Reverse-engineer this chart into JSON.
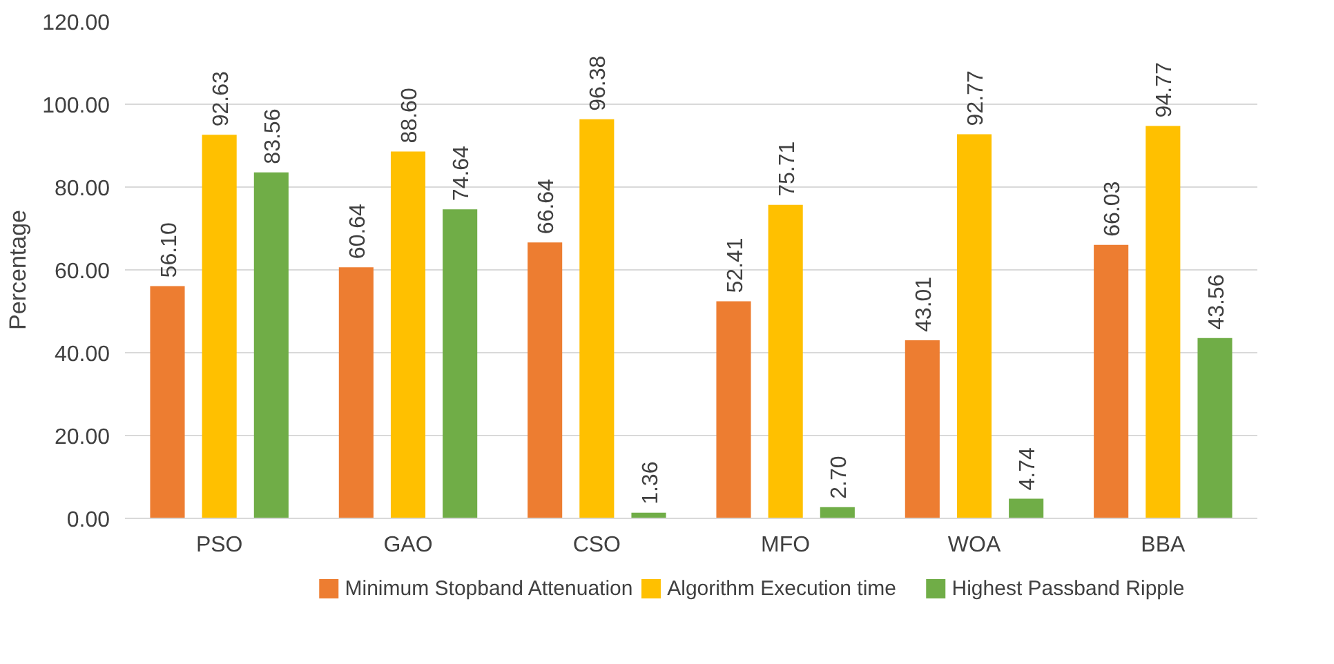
{
  "chart_data": {
    "type": "bar",
    "ylabel": "Percentage",
    "categories": [
      "PSO",
      "GAO",
      "CSO",
      "MFO",
      "WOA",
      "BBA"
    ],
    "series": [
      {
        "name": "Minimum Stopband Attenuation",
        "color": "#ed7d31",
        "values": [
          56.1,
          60.64,
          66.64,
          52.41,
          43.01,
          66.03
        ],
        "value_labels": [
          "56.10",
          "60.64",
          "66.64",
          "52.41",
          "43.01",
          "66.03"
        ]
      },
      {
        "name": "Algorithm Execution time",
        "color": "#ffc000",
        "values": [
          92.63,
          88.6,
          96.38,
          75.71,
          92.77,
          94.77
        ],
        "value_labels": [
          "92.63",
          "88.60",
          "96.38",
          "75.71",
          "92.77",
          "94.77"
        ]
      },
      {
        "name": "Highest Passband Ripple",
        "color": "#70ad47",
        "values": [
          83.56,
          74.64,
          1.36,
          2.7,
          4.74,
          43.56
        ],
        "value_labels": [
          "83.56",
          "74.64",
          "1.36",
          "2.70",
          "4.74",
          "43.56"
        ]
      }
    ],
    "ylim": [
      0,
      120
    ],
    "yticks": [
      {
        "value": 0,
        "label": "0.00"
      },
      {
        "value": 20,
        "label": "20.00"
      },
      {
        "value": 40,
        "label": "40.00"
      },
      {
        "value": 60,
        "label": "60.00"
      },
      {
        "value": 80,
        "label": "80.00"
      },
      {
        "value": 100,
        "label": "100.00"
      },
      {
        "value": 120,
        "label": "120.00"
      }
    ],
    "grid": "y",
    "legend": "bottom"
  }
}
